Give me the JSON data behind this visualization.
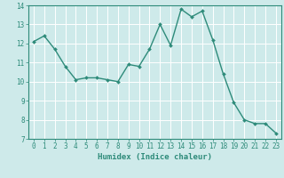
{
  "xlabel": "Humidex (Indice chaleur)",
  "ylabel": "",
  "x": [
    0,
    1,
    2,
    3,
    4,
    5,
    6,
    7,
    8,
    9,
    10,
    11,
    12,
    13,
    14,
    15,
    16,
    17,
    18,
    19,
    20,
    21,
    22,
    23
  ],
  "y": [
    12.1,
    12.4,
    11.7,
    10.8,
    10.1,
    10.2,
    10.2,
    10.1,
    10.0,
    10.9,
    10.8,
    11.7,
    13.0,
    11.9,
    13.8,
    13.4,
    13.7,
    12.2,
    10.4,
    8.9,
    8.0,
    7.8,
    7.8,
    7.3
  ],
  "line_color": "#2e8b7a",
  "marker": "D",
  "marker_size": 2.0,
  "line_width": 1.0,
  "background_color": "#ceeaea",
  "grid_color": "#ffffff",
  "ylim": [
    7,
    14
  ],
  "xlim": [
    -0.5,
    23.5
  ],
  "yticks": [
    7,
    8,
    9,
    10,
    11,
    12,
    13,
    14
  ],
  "xticks": [
    0,
    1,
    2,
    3,
    4,
    5,
    6,
    7,
    8,
    9,
    10,
    11,
    12,
    13,
    14,
    15,
    16,
    17,
    18,
    19,
    20,
    21,
    22,
    23
  ],
  "tick_label_fontsize": 5.5,
  "xlabel_fontsize": 6.5
}
